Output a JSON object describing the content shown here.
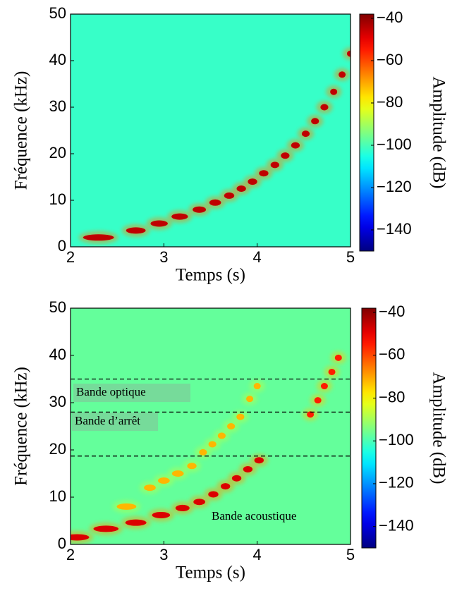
{
  "chart_data": [
    {
      "type": "spectrogram",
      "xlabel": "Temps (s)",
      "ylabel": "Fréquence (kHz)",
      "colorbar_label": "Amplitude (dB)",
      "xlim": [
        2,
        5
      ],
      "xticks": [
        2,
        3,
        4,
        5
      ],
      "ylim": [
        0,
        50
      ],
      "yticks": [
        0,
        10,
        20,
        30,
        40,
        50
      ],
      "clim": [
        -150,
        -38
      ],
      "cticks": [
        {
          "value": -40,
          "label": "−40"
        },
        {
          "value": -60,
          "label": "−60"
        },
        {
          "value": -80,
          "label": "−80"
        },
        {
          "value": -100,
          "label": "−100"
        },
        {
          "value": -120,
          "label": "−120"
        },
        {
          "value": -140,
          "label": "−140"
        }
      ],
      "background_level": -102,
      "series": [
        {
          "x": [
            2.3,
            2.7,
            2.95,
            3.17,
            3.38,
            3.55,
            3.7,
            3.83,
            3.95,
            4.07,
            4.19,
            4.3,
            4.41,
            4.52,
            4.62,
            4.72,
            4.82,
            4.91,
            5.0
          ],
          "y": [
            2,
            3.5,
            5,
            6.5,
            8,
            9.5,
            11,
            12.5,
            14,
            15.8,
            17.6,
            19.6,
            21.8,
            24.3,
            27,
            30,
            33.3,
            37,
            41.5
          ],
          "level": -45
        }
      ]
    },
    {
      "type": "spectrogram",
      "xlabel": "Temps (s)",
      "ylabel": "Fréquence (kHz)",
      "colorbar_label": "Amplitude (dB)",
      "xlim": [
        2,
        5
      ],
      "xticks": [
        2,
        3,
        4,
        5
      ],
      "ylim": [
        0,
        50
      ],
      "yticks": [
        0,
        10,
        20,
        30,
        40,
        50
      ],
      "clim": [
        -150,
        -38
      ],
      "cticks": [
        {
          "value": -40,
          "label": "−40"
        },
        {
          "value": -60,
          "label": "−60"
        },
        {
          "value": -80,
          "label": "−80"
        },
        {
          "value": -100,
          "label": "−100"
        },
        {
          "value": -120,
          "label": "−120"
        },
        {
          "value": -140,
          "label": "−140"
        }
      ],
      "background_level": -97,
      "series": [
        {
          "x": [
            2.07,
            2.38,
            2.7,
            2.97,
            3.2,
            3.38,
            3.53,
            3.66,
            3.78,
            3.9,
            4.02
          ],
          "y": [
            1.5,
            3.3,
            4.6,
            6.2,
            7.7,
            9,
            10.6,
            12.3,
            14,
            15.9,
            17.8
          ],
          "level": -48
        },
        {
          "x": [
            2.6,
            2.85,
            3.0,
            3.15,
            3.3,
            3.42,
            3.52,
            3.62,
            3.72,
            3.82,
            3.92,
            4.0
          ],
          "y": [
            8,
            12,
            13.5,
            15,
            16.6,
            19.5,
            21.2,
            23,
            25,
            27,
            30.8,
            33.5
          ],
          "level": -72
        },
        {
          "x": [
            4.57,
            4.65,
            4.72,
            4.8,
            4.87
          ],
          "y": [
            27.5,
            30.5,
            33.5,
            36.5,
            39.5
          ],
          "level": -55
        }
      ],
      "hlines": [
        35,
        28,
        18.7
      ],
      "annotations": [
        "Bande optique",
        "Bande d’arrêt",
        "Bande acoustique"
      ]
    }
  ]
}
